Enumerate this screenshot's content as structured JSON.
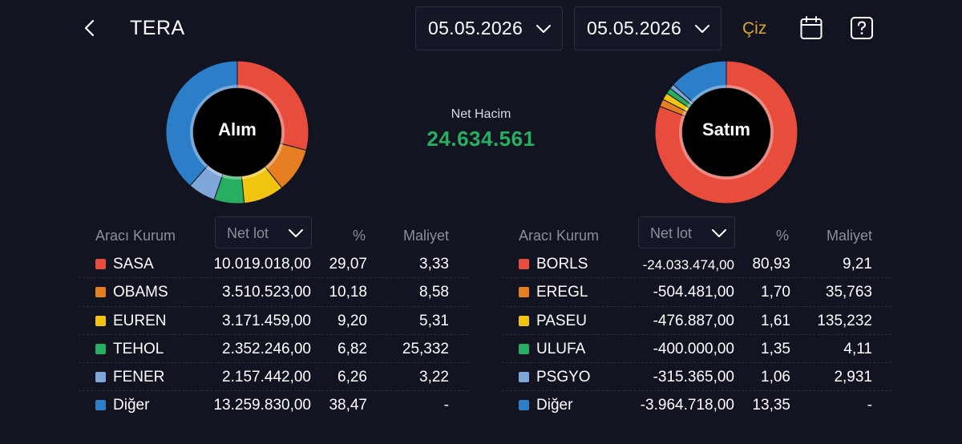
{
  "header": {
    "title": "TERA",
    "date_from": "05.05.2026",
    "date_to": "05.05.2026",
    "draw_label": "Çiz",
    "icons": {
      "back": "chevron-left-icon",
      "calendar": "calendar-icon",
      "help": "help-icon"
    }
  },
  "summary": {
    "net_label": "Net Hacim",
    "net_value": "24.634.561",
    "net_color": "#27ae60"
  },
  "buy": {
    "donut_label": "Alım",
    "columns": {
      "name": "Aracı Kurum",
      "sort": "Net lot",
      "pct": "%",
      "cost": "Maliyet"
    },
    "rows": [
      {
        "name": "SASA",
        "lot": "10.019.018,00",
        "pct": "29,07",
        "cost": "3,33",
        "color": "#e74c3c"
      },
      {
        "name": "OBAMS",
        "lot": "3.510.523,00",
        "pct": "10,18",
        "cost": "8,58",
        "color": "#e67e22"
      },
      {
        "name": "EUREN",
        "lot": "3.171.459,00",
        "pct": "9,20",
        "cost": "5,31",
        "color": "#f1c40f"
      },
      {
        "name": "TEHOL",
        "lot": "2.352.246,00",
        "pct": "6,82",
        "cost": "25,332",
        "color": "#27ae60"
      },
      {
        "name": "FENER",
        "lot": "2.157.442,00",
        "pct": "6,26",
        "cost": "3,22",
        "color": "#7ea6d8"
      },
      {
        "name": "Diğer",
        "lot": "13.259.830,00",
        "pct": "38,47",
        "cost": "-",
        "color": "#2d7ec9"
      }
    ],
    "shares": [
      29.07,
      10.18,
      9.2,
      6.82,
      6.26,
      38.47
    ]
  },
  "sell": {
    "donut_label": "Satım",
    "columns": {
      "name": "Aracı Kurum",
      "sort": "Net lot",
      "pct": "%",
      "cost": "Maliyet"
    },
    "rows": [
      {
        "name": "BORLS",
        "lot": "-24.033.474,00",
        "pct": "80,93",
        "cost": "9,21",
        "color": "#e74c3c"
      },
      {
        "name": "EREGL",
        "lot": "-504.481,00",
        "pct": "1,70",
        "cost": "35,763",
        "color": "#e67e22"
      },
      {
        "name": "PASEU",
        "lot": "-476.887,00",
        "pct": "1,61",
        "cost": "135,232",
        "color": "#f1c40f"
      },
      {
        "name": "ULUFA",
        "lot": "-400.000,00",
        "pct": "1,35",
        "cost": "4,11",
        "color": "#27ae60"
      },
      {
        "name": "PSGYO",
        "lot": "-315.365,00",
        "pct": "1,06",
        "cost": "2,931",
        "color": "#7ea6d8"
      },
      {
        "name": "Diğer",
        "lot": "-3.964.718,00",
        "pct": "13,35",
        "cost": "-",
        "color": "#2d7ec9"
      }
    ],
    "shares": [
      80.93,
      1.7,
      1.61,
      1.35,
      1.06,
      13.35
    ]
  }
}
